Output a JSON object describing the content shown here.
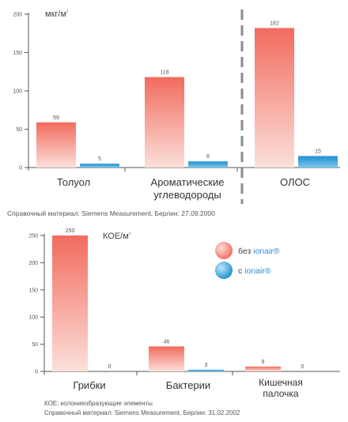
{
  "colors": {
    "without_top": "#f26b5e",
    "without_bottom": "#fbe0da",
    "with_top": "#1f90cf",
    "with_bottom": "#7cc7ee",
    "axis": "#555555",
    "divider": "#8a8a8a",
    "brand": "#2a8ed1"
  },
  "chart_data": [
    {
      "type": "bar",
      "ylabel": "мкг/м³",
      "ylim": [
        0,
        200
      ],
      "yticks": [
        "0",
        "50",
        "100",
        "150",
        "200"
      ],
      "categories": [
        "Толуол",
        "Ароматические углеводороды",
        "ОЛОС"
      ],
      "series": [
        {
          "name": "без ionair®",
          "values": [
            59,
            118,
            182
          ]
        },
        {
          "name": "с ionair®",
          "values": [
            5,
            8,
            15
          ]
        }
      ],
      "source": "Справочный материал: Siemens Measurement, Берлин: 27.09.2000"
    },
    {
      "type": "bar",
      "ylabel": "КОЕ/м³",
      "ylim": [
        0,
        250
      ],
      "yticks": [
        "0",
        "50",
        "100",
        "150",
        "200",
        "250"
      ],
      "categories": [
        "Грибки",
        "Бактерии",
        "Кишечная палочка"
      ],
      "series": [
        {
          "name": "без ionair®",
          "values": [
            250,
            46,
            9
          ]
        },
        {
          "name": "с ionair®",
          "values": [
            0,
            3,
            0
          ]
        }
      ],
      "legend": {
        "without_prefix": "без ",
        "with_prefix": "с ",
        "brand": "ionair®",
        "placement": "top-right"
      },
      "footnote": "КОЕ: колониеобразующие элементы",
      "source": "Справочный материал: Siemens Measurement, Берлин: 31.02.2002"
    }
  ]
}
